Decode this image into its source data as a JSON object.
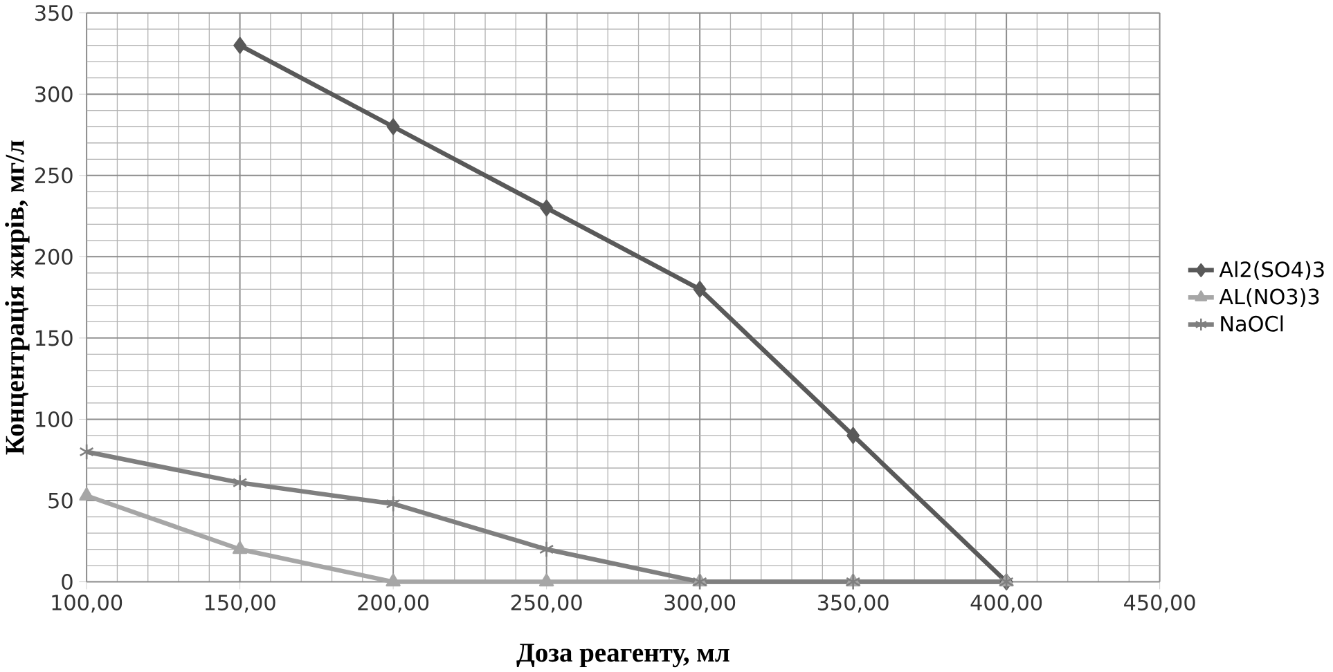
{
  "chart_data": {
    "type": "line",
    "xlabel": "Доза реагенту, мл",
    "ylabel": "Концентрація жирів, мг/л",
    "xlim": [
      100,
      450
    ],
    "ylim": [
      0,
      350
    ],
    "xticks": [
      {
        "value": 100,
        "label": "100,00"
      },
      {
        "value": 150,
        "label": "150,00"
      },
      {
        "value": 200,
        "label": "200,00"
      },
      {
        "value": 250,
        "label": "250,00"
      },
      {
        "value": 300,
        "label": "300,00"
      },
      {
        "value": 350,
        "label": "350,00"
      },
      {
        "value": 400,
        "label": "400,00"
      },
      {
        "value": 450,
        "label": "450,00"
      }
    ],
    "yticks": [
      0,
      50,
      100,
      150,
      200,
      250,
      300,
      350
    ],
    "grid": true,
    "legend": "right",
    "line_style": "solid",
    "series": [
      {
        "name": "Al2(SO4)3",
        "color": "#595959",
        "marker": "diamond",
        "x": [
          150,
          200,
          250,
          300,
          350,
          400
        ],
        "values": [
          330,
          280,
          230,
          180,
          90,
          0
        ]
      },
      {
        "name": "AL(NO3)3",
        "color": "#a6a6a6",
        "marker": "triangle",
        "x": [
          100,
          150,
          200,
          250,
          300,
          350,
          400
        ],
        "values": [
          53,
          20,
          0,
          0,
          0,
          0,
          0
        ]
      },
      {
        "name": "NaOCl",
        "color": "#7f7f7f",
        "marker": "cross",
        "x": [
          100,
          150,
          200,
          250,
          300,
          350,
          400
        ],
        "values": [
          80,
          61,
          48,
          20,
          0,
          0,
          0
        ]
      }
    ]
  }
}
